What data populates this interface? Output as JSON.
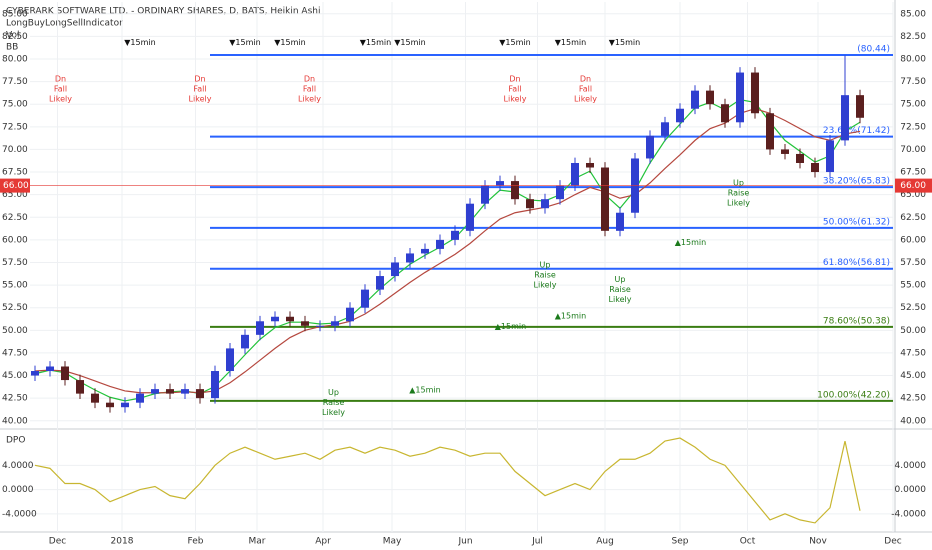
{
  "chart_data": [
    {
      "type": "candlestick",
      "title": "CYBERARK SOFTWARE LTD. - ORDINARY SHARES, D, BATS, Heikin Ashi",
      "indicators": [
        "LongBuyLongSellIndicator",
        "Vol",
        "BB"
      ],
      "up_color": "#2f3fd0",
      "down_color": "#5b1f1f",
      "open": [
        45,
        45.5,
        46,
        44.5,
        43,
        42,
        41.5,
        42,
        43,
        43.5,
        43,
        43.5,
        42.5,
        45.5,
        48,
        49.5,
        51,
        51.5,
        51,
        50.5,
        50.5,
        51,
        52.5,
        54.5,
        56,
        57.5,
        58.5,
        59,
        60,
        61,
        64,
        66,
        66.5,
        64.5,
        63.5,
        64.5,
        66,
        68.5,
        68,
        61,
        63,
        69,
        71.5,
        73,
        74.5,
        76.5,
        75,
        73,
        78.5,
        74,
        70,
        69.5,
        68.5,
        67.5,
        71,
        76
      ],
      "high": [
        46.1,
        46.6,
        46.6,
        45.1,
        43.6,
        42.6,
        42.6,
        43.6,
        44.1,
        44.1,
        44.1,
        44.1,
        46.1,
        48.6,
        50.1,
        51.6,
        52.1,
        52.1,
        51.6,
        51.1,
        51.6,
        53.1,
        55.1,
        56.6,
        58.1,
        59.1,
        59.6,
        60.6,
        61.6,
        64.6,
        66.6,
        67.1,
        67.1,
        65.1,
        65.1,
        66.6,
        69.1,
        69.1,
        68.6,
        63.6,
        69.6,
        72.1,
        73.6,
        75.1,
        77.1,
        77.1,
        75.6,
        79.1,
        79.1,
        74.6,
        70.6,
        70.1,
        69.1,
        71.6,
        80.4,
        76.6
      ],
      "low": [
        44.4,
        44.9,
        43.9,
        42.4,
        41.4,
        40.9,
        40.9,
        41.4,
        42.4,
        42.4,
        42.4,
        41.9,
        41.9,
        44.9,
        47.4,
        48.9,
        50.4,
        50.4,
        49.9,
        49.9,
        49.9,
        50.4,
        51.9,
        53.9,
        55.4,
        56.9,
        57.9,
        58.4,
        59.4,
        60.4,
        63.4,
        65.4,
        63.9,
        62.9,
        62.9,
        63.9,
        65.4,
        67.4,
        60.4,
        60.4,
        62.4,
        68.4,
        70.9,
        72.4,
        73.9,
        74.4,
        72.4,
        72.4,
        73.4,
        69.4,
        68.9,
        67.9,
        66.9,
        66.9,
        70.4,
        72.9
      ],
      "close": [
        45.5,
        46,
        44.5,
        43,
        42,
        41.5,
        42,
        43,
        43.5,
        43,
        43.5,
        42.5,
        45.5,
        48,
        49.5,
        51,
        51.5,
        51,
        50.5,
        50.5,
        51,
        52.5,
        54.5,
        56,
        57.5,
        58.5,
        59,
        60,
        61,
        64,
        66,
        66.5,
        64.5,
        63.5,
        64.5,
        66,
        68.5,
        68,
        61,
        63,
        69,
        71.5,
        73,
        74.5,
        76.5,
        75,
        73,
        78.5,
        74,
        70,
        69.5,
        68.5,
        67.5,
        71,
        76,
        73.5
      ],
      "lines": [
        {
          "color": "#22c33a",
          "values": [
            45.2,
            45.6,
            45.3,
            44.3,
            43.4,
            42.6,
            42.2,
            42.5,
            43,
            43.2,
            43.3,
            43,
            43.8,
            45.5,
            47.3,
            49,
            50.3,
            50.9,
            50.9,
            50.7,
            50.8,
            51.5,
            53,
            54.6,
            56,
            57.3,
            58.3,
            59.2,
            60.2,
            62,
            64,
            65.5,
            65.3,
            64.4,
            64.3,
            65,
            66.8,
            67.6,
            65,
            63.5,
            65.5,
            68.5,
            71,
            72.8,
            74.6,
            75.2,
            74.4,
            75.5,
            75.2,
            73,
            71,
            69.8,
            68.6,
            69.3,
            72,
            73
          ]
        },
        {
          "color": "#b5483f",
          "values": [
            45.5,
            45.6,
            45.5,
            45,
            44.4,
            43.8,
            43.3,
            43.1,
            43.1,
            43.1,
            43.2,
            43.1,
            43.3,
            44.2,
            45.4,
            46.7,
            48,
            49.2,
            50,
            50.4,
            50.6,
            51,
            51.8,
            52.9,
            54.1,
            55.3,
            56.4,
            57.4,
            58.4,
            59.6,
            61,
            62.3,
            63,
            63.3,
            63.6,
            64.1,
            65,
            65.8,
            65.3,
            64.6,
            65,
            66.3,
            67.9,
            69.4,
            71,
            72.3,
            72.9,
            74,
            74.5,
            74,
            73.2,
            72.3,
            71.4,
            71,
            71.7,
            72
          ]
        }
      ],
      "levels": [
        {
          "value": 80.44,
          "label": "(80.44)",
          "color": "#2962ff"
        },
        {
          "value": 71.42,
          "label": "23.60%(71.42)",
          "color": "#2962ff"
        },
        {
          "value": 65.83,
          "label": "38.20%(65.83)",
          "color": "#2962ff"
        },
        {
          "value": 61.32,
          "label": "50.00%(61.32)",
          "color": "#2962ff"
        },
        {
          "value": 56.81,
          "label": "61.80%(56.81)",
          "color": "#2962ff"
        },
        {
          "value": 50.38,
          "label": "78.60%(50.38)",
          "color": "#3a7d12"
        },
        {
          "value": 42.2,
          "label": "100.00%(42.20)",
          "color": "#3a7d12"
        }
      ],
      "price_tag": {
        "value": 66,
        "label": "66.00",
        "color": "#e53935"
      },
      "annotations": [
        {
          "text": "▼15min",
          "x": 7,
          "y": 81.8,
          "color": "#111"
        },
        {
          "text": "▼15min",
          "x": 14,
          "y": 81.8,
          "color": "#111"
        },
        {
          "text": "▼15min",
          "x": 17,
          "y": 81.8,
          "color": "#111"
        },
        {
          "text": "▼15min",
          "x": 22.7,
          "y": 81.8,
          "color": "#111"
        },
        {
          "text": "▼15min",
          "x": 25,
          "y": 81.8,
          "color": "#111"
        },
        {
          "text": "▼15min",
          "x": 32,
          "y": 81.8,
          "color": "#111"
        },
        {
          "text": "▼15min",
          "x": 35.7,
          "y": 81.8,
          "color": "#111"
        },
        {
          "text": "▼15min",
          "x": 39.3,
          "y": 81.8,
          "color": "#111"
        },
        {
          "text": "Dn",
          "x": 1.7,
          "y": 77.8,
          "color": "#e53935"
        },
        {
          "text": "Fall",
          "x": 1.7,
          "y": 76.7,
          "color": "#e53935"
        },
        {
          "text": "Likely",
          "x": 1.7,
          "y": 75.6,
          "color": "#e53935"
        },
        {
          "text": "Dn",
          "x": 11,
          "y": 77.8,
          "color": "#e53935"
        },
        {
          "text": "Fall",
          "x": 11,
          "y": 76.7,
          "color": "#e53935"
        },
        {
          "text": "Likely",
          "x": 11,
          "y": 75.6,
          "color": "#e53935"
        },
        {
          "text": "Dn",
          "x": 18.3,
          "y": 77.8,
          "color": "#e53935"
        },
        {
          "text": "Fall",
          "x": 18.3,
          "y": 76.7,
          "color": "#e53935"
        },
        {
          "text": "Likely",
          "x": 18.3,
          "y": 75.6,
          "color": "#e53935"
        },
        {
          "text": "Dn",
          "x": 32,
          "y": 77.8,
          "color": "#e53935"
        },
        {
          "text": "Fall",
          "x": 32,
          "y": 76.7,
          "color": "#e53935"
        },
        {
          "text": "Likely",
          "x": 32,
          "y": 75.6,
          "color": "#e53935"
        },
        {
          "text": "Dn",
          "x": 36.7,
          "y": 77.8,
          "color": "#e53935"
        },
        {
          "text": "Fall",
          "x": 36.7,
          "y": 76.7,
          "color": "#e53935"
        },
        {
          "text": "Likely",
          "x": 36.7,
          "y": 75.6,
          "color": "#e53935"
        },
        {
          "text": "Up",
          "x": 34,
          "y": 57.2,
          "color": "#1b7a1b"
        },
        {
          "text": "Raise",
          "x": 34,
          "y": 56.1,
          "color": "#1b7a1b"
        },
        {
          "text": "Likely",
          "x": 34,
          "y": 55,
          "color": "#1b7a1b"
        },
        {
          "text": "Up",
          "x": 39,
          "y": 55.6,
          "color": "#1b7a1b"
        },
        {
          "text": "Raise",
          "x": 39,
          "y": 54.5,
          "color": "#1b7a1b"
        },
        {
          "text": "Likely",
          "x": 39,
          "y": 53.4,
          "color": "#1b7a1b"
        },
        {
          "text": "Up",
          "x": 46.9,
          "y": 66.3,
          "color": "#1b7a1b"
        },
        {
          "text": "Raise",
          "x": 46.9,
          "y": 65.2,
          "color": "#1b7a1b"
        },
        {
          "text": "Likely",
          "x": 46.9,
          "y": 64.1,
          "color": "#1b7a1b"
        },
        {
          "text": "Up",
          "x": 19.9,
          "y": 43.1,
          "color": "#1b7a1b"
        },
        {
          "text": "Raise",
          "x": 19.9,
          "y": 42,
          "color": "#1b7a1b"
        },
        {
          "text": "Likely",
          "x": 19.9,
          "y": 40.9,
          "color": "#1b7a1b"
        },
        {
          "text": "▲15min",
          "x": 31.7,
          "y": 50.4,
          "color": "#1b7a1b"
        },
        {
          "text": "▲15min",
          "x": 35.7,
          "y": 51.6,
          "color": "#1b7a1b"
        },
        {
          "text": "▲15min",
          "x": 43.7,
          "y": 59.7,
          "color": "#1b7a1b"
        },
        {
          "text": "▲15min",
          "x": 26,
          "y": 43.4,
          "color": "#1b7a1b"
        }
      ],
      "xlim": [
        -1,
        58
      ],
      "xticks": [
        {
          "value": 1.5,
          "label": "Dec"
        },
        {
          "value": 5.8,
          "label": "2018"
        },
        {
          "value": 10.7,
          "label": "Feb"
        },
        {
          "value": 14.8,
          "label": "Mar"
        },
        {
          "value": 19.2,
          "label": "Apr"
        },
        {
          "value": 23.8,
          "label": "May"
        },
        {
          "value": 28.7,
          "label": "Jun"
        },
        {
          "value": 33.5,
          "label": "Jul"
        },
        {
          "value": 38,
          "label": "Aug"
        },
        {
          "value": 43,
          "label": "Sep"
        },
        {
          "value": 47.5,
          "label": "Oct"
        },
        {
          "value": 52.2,
          "label": "Nov"
        },
        {
          "value": 57.2,
          "label": "Dec"
        }
      ],
      "ylim": [
        39.2,
        86.3
      ],
      "yticks": [
        {
          "value": 40,
          "label": "40.00"
        },
        {
          "value": 42.5,
          "label": "42.50"
        },
        {
          "value": 45,
          "label": "45.00"
        },
        {
          "value": 47.5,
          "label": "47.50"
        },
        {
          "value": 50,
          "label": "50.00"
        },
        {
          "value": 52.5,
          "label": "52.50"
        },
        {
          "value": 55,
          "label": "55.00"
        },
        {
          "value": 57.5,
          "label": "57.50"
        },
        {
          "value": 60,
          "label": "60.00"
        },
        {
          "value": 62.5,
          "label": "62.50"
        },
        {
          "value": 65,
          "label": "65.00"
        },
        {
          "value": 67.5,
          "label": "67.50"
        },
        {
          "value": 70,
          "label": "70.00"
        },
        {
          "value": 72.5,
          "label": "72.50"
        },
        {
          "value": 75,
          "label": "75.00"
        },
        {
          "value": 77.5,
          "label": "77.50"
        },
        {
          "value": 80,
          "label": "80.00"
        },
        {
          "value": 82.5,
          "label": "82.50"
        },
        {
          "value": 85,
          "label": "85.00"
        }
      ],
      "grid": true
    },
    {
      "type": "line",
      "title": "DPO",
      "color": "#c8b630",
      "values": [
        4,
        3.5,
        1,
        1,
        0,
        -2,
        -1,
        0,
        0.5,
        -1,
        -1.5,
        1,
        4,
        6,
        7,
        6,
        5,
        5.5,
        6,
        5,
        6.5,
        7,
        6,
        7,
        6.5,
        5.5,
        6,
        7,
        6.5,
        5.5,
        6,
        6,
        3,
        1,
        -1,
        0,
        1,
        0,
        3,
        5,
        5,
        6,
        8,
        8.5,
        7,
        5,
        4,
        1,
        -2,
        -5,
        -4,
        -5,
        -5.5,
        -3,
        8,
        -3.5
      ],
      "xlim": [
        -1,
        58
      ],
      "ylim": [
        -7,
        9.5
      ],
      "yticks": [
        {
          "value": -4,
          "label": "-4.0000"
        },
        {
          "value": 0,
          "label": "0.0000"
        },
        {
          "value": 4,
          "label": "4.0000"
        }
      ],
      "grid": true
    }
  ]
}
